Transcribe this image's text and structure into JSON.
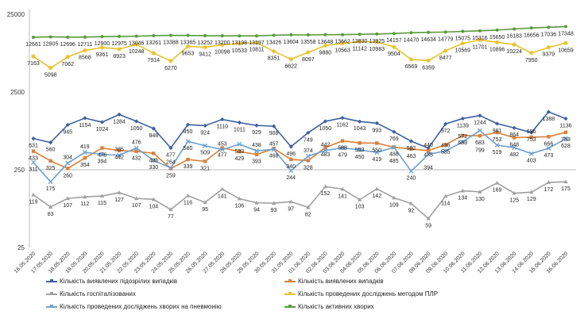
{
  "chart_data": {
    "type": "line",
    "title": "",
    "xlabel": "",
    "ylabel": "",
    "y_scale": "log",
    "ylim": [
      25,
      25000
    ],
    "y_ticks": [
      "25",
      "250",
      "2500",
      "25000"
    ],
    "grid": "horizontal line at 250 only",
    "legend_position": "bottom",
    "categories": [
      "16.05.2020",
      "17.05.2020",
      "18.05.2020",
      "19.05.2020",
      "20.05.2020",
      "21.05.2020",
      "22.05.2020",
      "23.05.2020",
      "24.05.2020",
      "25.05.2020",
      "26.05.2020",
      "27.05.2020",
      "28.05.2020",
      "29.05.2020",
      "30.05.2020",
      "31.05.2020",
      "01.06.2020",
      "02.06.2020",
      "03.06.2020",
      "04.06.2020",
      "05.06.2020",
      "06.06.2020",
      "07.06.2020",
      "08.06.2020",
      "09.06.2020",
      "10.06.2020",
      "11.06.2020",
      "12.06.2020",
      "13.06.2020",
      "14.06.2020",
      "15.06.2020",
      "16.06.2020"
    ],
    "series": [
      {
        "name": "Кількість виявлених підозрілих випадків",
        "color": "#3e5f9e",
        "marker": "diamond",
        "values": [
          631,
          560,
          945,
          1154,
          1024,
          1284,
          1050,
          848,
          477,
          950,
          924,
          1110,
          1011,
          929,
          908,
          496,
          749,
          1050,
          1162,
          1043,
          993,
          769,
          582,
          475,
          972,
          1139,
          1244,
          981,
          864,
          753,
          1388,
          1136
        ]
      },
      {
        "name": "Кількість виявлених випадків",
        "color": "#d9813b",
        "marker": "square",
        "values": [
          433,
          325,
          260,
          354,
          476,
          442,
          432,
          406,
          259,
          339,
          321,
          477,
          429,
          393,
          468,
          340,
          328,
          483,
          588,
          553,
          550,
          488,
          463,
          440,
          525,
          689,
          683,
          753,
          648,
          656,
          666,
          758
        ]
      },
      {
        "name": "Кількість госпіталізованих",
        "color": "#a0a0a0",
        "marker": "triangle",
        "values": [
          119,
          83,
          107,
          112,
          115,
          127,
          107,
          104,
          77,
          116,
          95,
          141,
          106,
          94,
          93,
          97,
          82,
          152,
          141,
          103,
          142,
          109,
          92,
          59,
          114,
          134,
          130,
          169,
          125,
          129,
          172,
          175
        ]
      },
      {
        "name": "Кількість проведених досліджень методом ПЛР",
        "color": "#e6c229",
        "marker": "star",
        "values": [
          7163,
          5098,
          7062,
          8568,
          9361,
          8923,
          10248,
          7914,
          6270,
          9653,
          9412,
          10098,
          10533,
          10811,
          8351,
          6622,
          8097,
          9880,
          10563,
          11142,
          10983,
          9504,
          6569,
          6359,
          8477,
          10569,
          11701,
          10896,
          10224,
          7950,
          9379,
          10659
        ]
      },
      {
        "name": "Кількість проведених досліджень хворих на пневмонію",
        "color": "#6fa0d0",
        "marker": "x",
        "values": [
          311,
          175,
          304,
          419,
          394,
          385,
          476,
          330,
          264,
          580,
          509,
          453,
          533,
          438,
          457,
          244,
          374,
          442,
          479,
          450,
          419,
          485,
          240,
          394,
          436,
          572,
          799,
          519,
          482,
          403,
          473,
          628
        ]
      },
      {
        "name": "Кількість активних хворих",
        "color": "#5b9a3c",
        "marker": "circle",
        "values": [
          12661,
          12805,
          12696,
          12711,
          12900,
          12975,
          13046,
          13261,
          13388,
          13365,
          13252,
          13200,
          13198,
          13197,
          13426,
          13604,
          13558,
          13648,
          13662,
          13830,
          13925,
          14157,
          14470,
          14634,
          14779,
          15075,
          15316,
          15650,
          16183,
          16656,
          17036,
          17348
        ]
      }
    ]
  }
}
